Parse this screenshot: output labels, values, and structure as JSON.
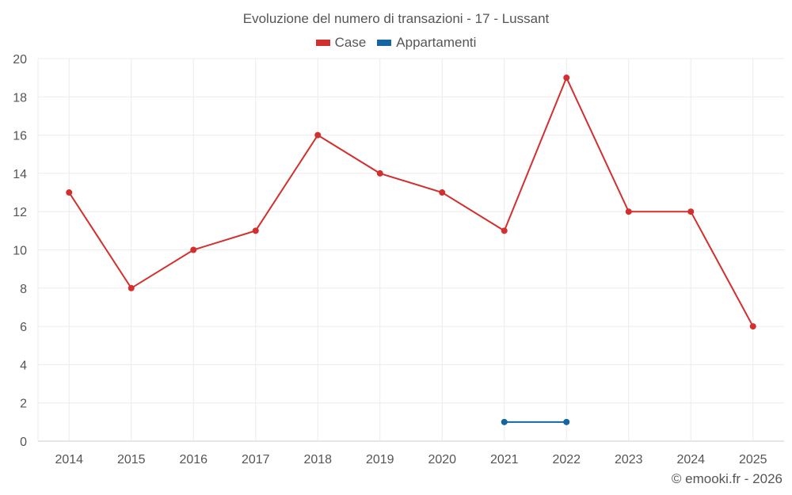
{
  "chart_data": {
    "type": "line",
    "title": "Evoluzione del numero di transazioni - 17 - Lussant",
    "x": [
      "2014",
      "2015",
      "2016",
      "2017",
      "2018",
      "2019",
      "2020",
      "2021",
      "2022",
      "2023",
      "2024",
      "2025"
    ],
    "series": [
      {
        "name": "Case",
        "color": "#d32f2f",
        "values": [
          13,
          8,
          10,
          11,
          16,
          14,
          13,
          11,
          19,
          12,
          12,
          6
        ]
      },
      {
        "name": "Appartamenti",
        "color": "#1565a0",
        "values": [
          null,
          null,
          null,
          null,
          null,
          null,
          null,
          1,
          1,
          null,
          null,
          null
        ]
      }
    ],
    "yticks": [
      0,
      2,
      4,
      6,
      8,
      10,
      12,
      14,
      16,
      18,
      20
    ],
    "ylim": [
      0,
      20
    ],
    "grid": true,
    "legend_position": "top-center",
    "credit": "© emooki.fr - 2026"
  }
}
